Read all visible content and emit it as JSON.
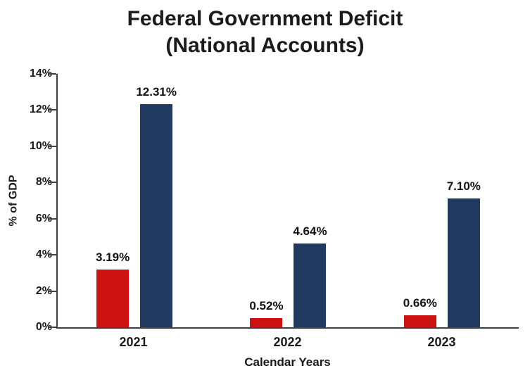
{
  "title": {
    "line1": "Federal Government Deficit",
    "line2": "(National Accounts)"
  },
  "chart_data": {
    "type": "bar",
    "categories": [
      "2021",
      "2022",
      "2023"
    ],
    "series": [
      {
        "name": "red-series",
        "color": "#cc1111",
        "values": [
          3.19,
          0.52,
          0.66
        ],
        "labels": [
          "3.19%",
          "0.52%",
          "0.66%"
        ]
      },
      {
        "name": "navy-series",
        "color": "#203a60",
        "values": [
          12.31,
          4.64,
          7.1
        ],
        "labels": [
          "12.31%",
          "4.64%",
          "7.10%"
        ]
      }
    ],
    "xlabel": "Calendar Years",
    "ylabel": "% of GDP",
    "ylim": [
      0,
      14
    ],
    "yticks": [
      "0%",
      "2%",
      "4%",
      "6%",
      "8%",
      "10%",
      "12%",
      "14%"
    ],
    "grid": "off",
    "legend": "none",
    "axis_color": "#404040"
  }
}
